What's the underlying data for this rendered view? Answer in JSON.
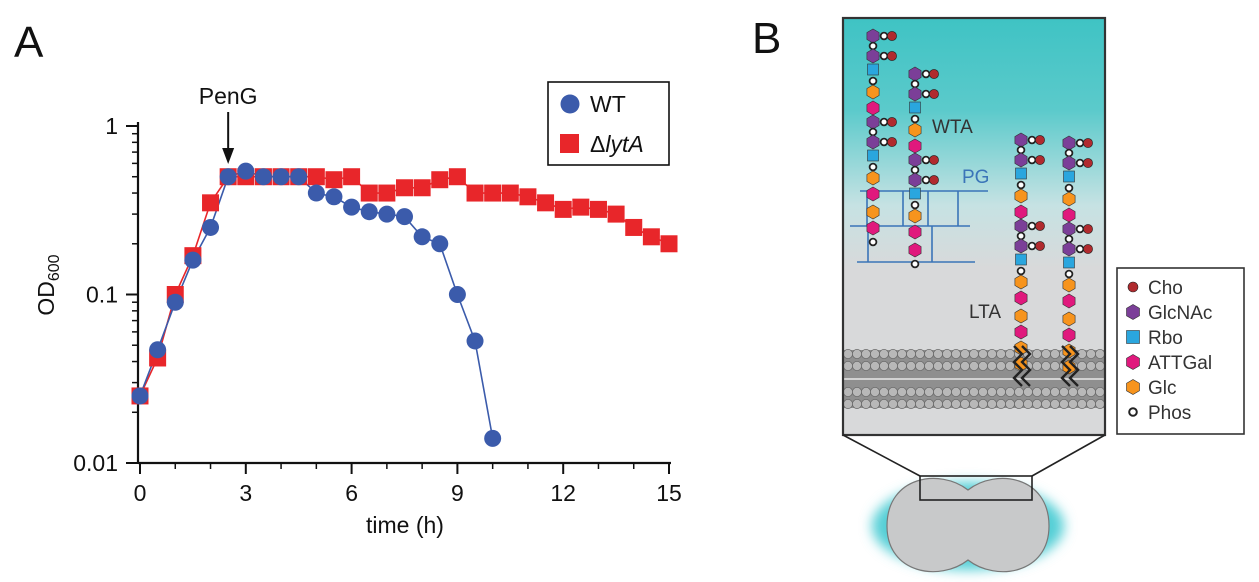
{
  "panels": {
    "a_label": "A",
    "b_label": "B"
  },
  "chart_data": {
    "type": "scatter",
    "log_y": true,
    "xlabel": "time (h)",
    "ylabel_main": "OD",
    "ylabel_sub": "600",
    "xlim": [
      0,
      15
    ],
    "ylim": [
      0.01,
      1
    ],
    "xticks": [
      0,
      3,
      6,
      9,
      12,
      15
    ],
    "xtick_labels": [
      "0",
      "3",
      "6",
      "9",
      "12",
      "15"
    ],
    "yticks": [
      0.01,
      0.1,
      1
    ],
    "ytick_labels": [
      "0.01",
      "0.1",
      "1"
    ],
    "grid": false,
    "legend_position": "top-right",
    "annotation": "PenG",
    "annotation_x": 2.5,
    "series": [
      {
        "name": "WT",
        "marker": "circle",
        "color": "#3b5bab",
        "x": [
          0,
          0.5,
          1,
          1.5,
          2,
          2.5,
          3,
          3.5,
          4,
          4.5,
          5,
          5.5,
          6,
          6.5,
          7,
          7.5,
          8,
          8.5,
          9,
          9.5,
          10
        ],
        "y": [
          0.025,
          0.047,
          0.09,
          0.16,
          0.25,
          0.5,
          0.54,
          0.5,
          0.5,
          0.5,
          0.4,
          0.38,
          0.33,
          0.31,
          0.3,
          0.29,
          0.22,
          0.2,
          0.1,
          0.053,
          0.014
        ]
      },
      {
        "name": "ΔlytA",
        "name_prefix": "Δ",
        "name_italic": "lytA",
        "marker": "square",
        "color": "#e8262a",
        "x": [
          0,
          0.5,
          1,
          1.5,
          2,
          2.5,
          3,
          3.5,
          4,
          4.5,
          5,
          5.5,
          6,
          6.5,
          7,
          7.5,
          8,
          8.5,
          9,
          9.5,
          10,
          10.5,
          11,
          11.5,
          12,
          12.5,
          13,
          13.5,
          14,
          14.5,
          15
        ],
        "y": [
          0.025,
          0.042,
          0.1,
          0.17,
          0.35,
          0.5,
          0.5,
          0.5,
          0.5,
          0.5,
          0.5,
          0.48,
          0.5,
          0.4,
          0.4,
          0.43,
          0.43,
          0.48,
          0.5,
          0.4,
          0.4,
          0.4,
          0.38,
          0.35,
          0.32,
          0.33,
          0.32,
          0.3,
          0.25,
          0.22,
          0.2
        ]
      }
    ]
  },
  "diagram": {
    "labels": {
      "wta": "WTA",
      "pg": "PG",
      "lta": "LTA"
    },
    "legend": [
      {
        "label": "Cho",
        "shape": "dot",
        "color": "#b02a2e"
      },
      {
        "label": "GlcNAc",
        "shape": "hexagon",
        "color": "#7b3f98"
      },
      {
        "label": "Rbo",
        "shape": "square",
        "color": "#2aa6de"
      },
      {
        "label": "ATTGal",
        "shape": "hexagon",
        "color": "#e0197d"
      },
      {
        "label": "Glc",
        "shape": "hexagon",
        "color": "#f7941d"
      },
      {
        "label": "Phos",
        "shape": "ring",
        "color": "#ffffff"
      }
    ],
    "colors": {
      "cho": "#b02a2e",
      "glcnac": "#7b3f98",
      "rbo": "#2aa6de",
      "attgal": "#e0197d",
      "glc": "#f7941d",
      "pg_lines": "#3a74b8",
      "cell_glow": "#54cfd6",
      "teal": "#3fc3c4",
      "membrane": "#9b9b9b"
    }
  }
}
